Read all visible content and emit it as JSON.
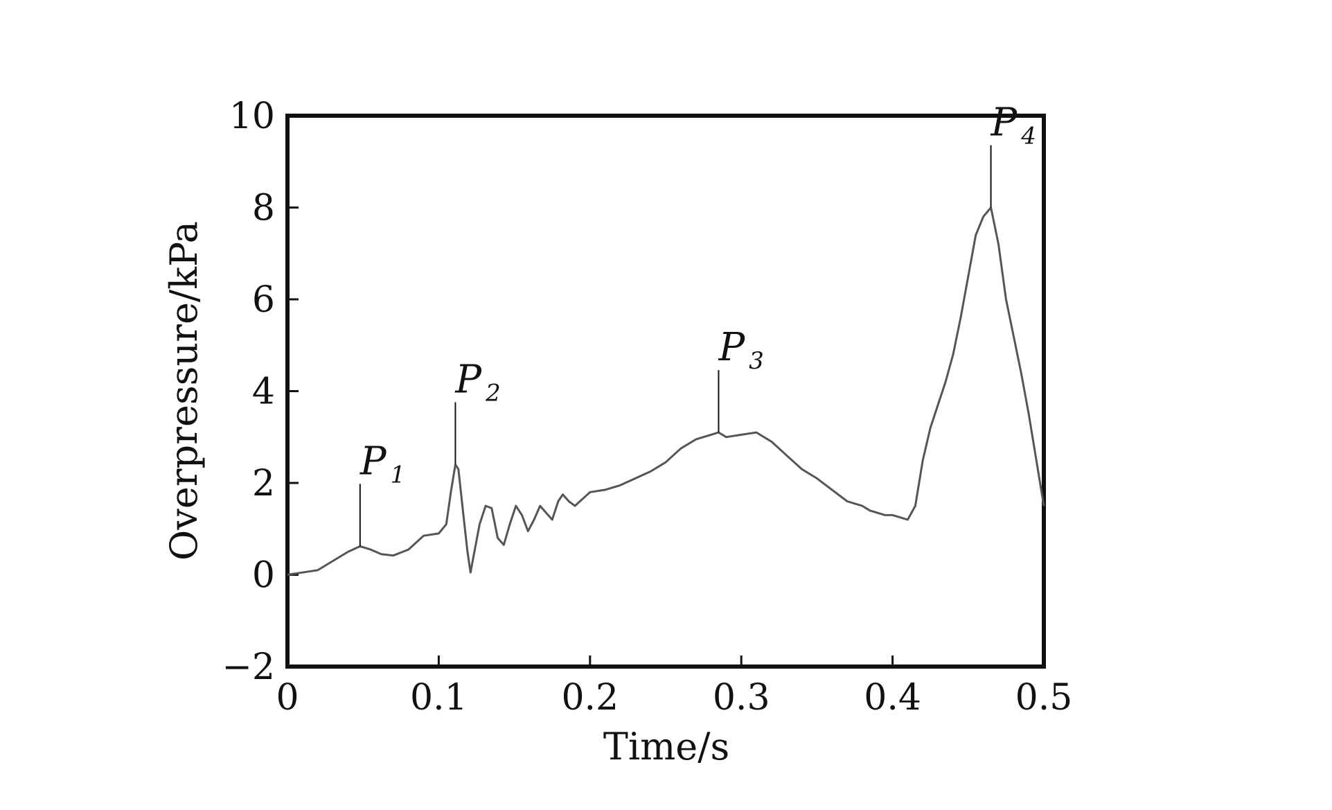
{
  "chart_data": {
    "type": "line",
    "title": "",
    "xlabel": "Time/s",
    "ylabel": "Overpressure/kPa",
    "xlim": [
      0,
      0.5
    ],
    "ylim": [
      -2,
      10
    ],
    "xticks": [
      0,
      0.1,
      0.2,
      0.3,
      0.4,
      0.5
    ],
    "xtick_labels": [
      "0",
      "0.1",
      "0.2",
      "0.3",
      "0.4",
      "0.5"
    ],
    "yticks": [
      -2,
      0,
      2,
      4,
      6,
      8,
      10
    ],
    "ytick_labels": [
      "−2",
      "0",
      "2",
      "4",
      "6",
      "8",
      "10"
    ],
    "grid": false,
    "line_color": "#555555",
    "series": [
      {
        "x": [
          0,
          0.01,
          0.02,
          0.03,
          0.04,
          0.048,
          0.055,
          0.062,
          0.07,
          0.08,
          0.09,
          0.1,
          0.105,
          0.108,
          0.111,
          0.113,
          0.116,
          0.119,
          0.121,
          0.123,
          0.127,
          0.131,
          0.135,
          0.139,
          0.143,
          0.147,
          0.151,
          0.155,
          0.159,
          0.163,
          0.167,
          0.171,
          0.175,
          0.179,
          0.182,
          0.186,
          0.19,
          0.195,
          0.2,
          0.21,
          0.22,
          0.23,
          0.24,
          0.25,
          0.26,
          0.27,
          0.28,
          0.285,
          0.29,
          0.3,
          0.31,
          0.32,
          0.33,
          0.34,
          0.35,
          0.36,
          0.37,
          0.375,
          0.38,
          0.385,
          0.39,
          0.395,
          0.4,
          0.405,
          0.41,
          0.415,
          0.42,
          0.425,
          0.43,
          0.435,
          0.44,
          0.445,
          0.45,
          0.455,
          0.46,
          0.465,
          0.47,
          0.475,
          0.48,
          0.485,
          0.49,
          0.495,
          0.5
        ],
        "values": [
          0,
          0.05,
          0.1,
          0.3,
          0.5,
          0.62,
          0.55,
          0.45,
          0.42,
          0.55,
          0.85,
          0.9,
          1.1,
          1.8,
          2.4,
          2.3,
          1.4,
          0.5,
          0.05,
          0.4,
          1.1,
          1.5,
          1.45,
          0.8,
          0.65,
          1.1,
          1.5,
          1.3,
          0.95,
          1.2,
          1.5,
          1.35,
          1.2,
          1.6,
          1.75,
          1.6,
          1.5,
          1.65,
          1.8,
          1.85,
          1.95,
          2.1,
          2.25,
          2.45,
          2.75,
          2.95,
          3.05,
          3.1,
          3.0,
          3.05,
          3.1,
          2.9,
          2.6,
          2.3,
          2.1,
          1.85,
          1.6,
          1.55,
          1.5,
          1.4,
          1.35,
          1.3,
          1.3,
          1.25,
          1.2,
          1.5,
          2.5,
          3.2,
          3.7,
          4.2,
          4.8,
          5.6,
          6.5,
          7.4,
          7.8,
          8.0,
          7.2,
          6.0,
          5.2,
          4.4,
          3.5,
          2.5,
          1.5
        ]
      }
    ],
    "annotations": [
      {
        "label": "P",
        "sub": "1",
        "x": 0.048,
        "y": 0.62
      },
      {
        "label": "P",
        "sub": "2",
        "x": 0.111,
        "y": 2.4
      },
      {
        "label": "P",
        "sub": "3",
        "x": 0.285,
        "y": 3.1
      },
      {
        "label": "P",
        "sub": "4",
        "x": 0.465,
        "y": 8.0
      }
    ]
  }
}
